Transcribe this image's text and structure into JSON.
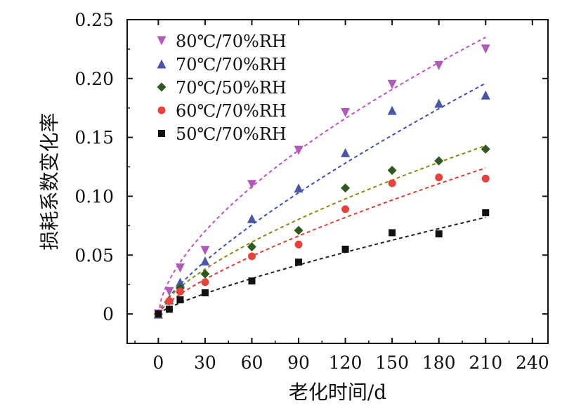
{
  "chart_data": {
    "type": "scatter",
    "xlabel": "老化时间/d",
    "ylabel": "损耗系数变化率",
    "xlim": [
      -20,
      250
    ],
    "ylim": [
      -0.025,
      0.25
    ],
    "x_ticks": [
      0,
      30,
      60,
      90,
      120,
      150,
      180,
      210,
      240
    ],
    "x_tick_labels": [
      "0",
      "30",
      "60",
      "90",
      "120",
      "150",
      "180",
      "210",
      "240"
    ],
    "y_ticks": [
      0,
      0.05,
      0.1,
      0.15,
      0.2,
      0.25
    ],
    "y_tick_labels": [
      "0",
      "0.05",
      "0.10",
      "0.15",
      "0.20",
      "0.25"
    ],
    "legend_position": "top-left",
    "grid": false,
    "fit_lines": "dashed",
    "series": [
      {
        "name": "80℃/70%RH",
        "marker": "triangle-down",
        "color": "#b05bb8",
        "fit_color": "#c24fcf",
        "x": [
          0,
          7,
          14,
          30,
          60,
          90,
          120,
          150,
          180,
          210
        ],
        "y": [
          0.0,
          0.019,
          0.039,
          0.054,
          0.11,
          0.139,
          0.171,
          0.195,
          0.211,
          0.225
        ],
        "fit": [
          0.235,
          0.62
        ]
      },
      {
        "name": "70℃/70%RH",
        "marker": "triangle-up",
        "color": "#4a56a8",
        "fit_color": "#3d4fc0",
        "x": [
          0,
          7,
          14,
          30,
          60,
          90,
          120,
          150,
          180,
          210
        ],
        "y": [
          0.0,
          0.012,
          0.027,
          0.045,
          0.081,
          0.107,
          0.137,
          0.173,
          0.179,
          0.186
        ],
        "fit": [
          0.196,
          0.76
        ]
      },
      {
        "name": "70℃/50%RH",
        "marker": "diamond",
        "color": "#2e5a1f",
        "fit_color": "#8a8a10",
        "x": [
          0,
          7,
          14,
          30,
          60,
          90,
          120,
          150,
          180,
          210
        ],
        "y": [
          0.0,
          0.011,
          0.022,
          0.034,
          0.057,
          0.071,
          0.107,
          0.122,
          0.13,
          0.14
        ],
        "fit": [
          0.143,
          0.68
        ]
      },
      {
        "name": "60℃/70%RH",
        "marker": "circle",
        "color": "#e8433b",
        "fit_color": "#e33a2e",
        "x": [
          0,
          7,
          14,
          30,
          60,
          90,
          120,
          150,
          180,
          210
        ],
        "y": [
          0.0,
          0.011,
          0.019,
          0.027,
          0.049,
          0.059,
          0.089,
          0.111,
          0.116,
          0.115
        ],
        "fit": [
          0.124,
          0.74
        ]
      },
      {
        "name": "50℃/70%RH",
        "marker": "square",
        "color": "#111111",
        "fit_color": "#222222",
        "x": [
          0,
          7,
          14,
          30,
          60,
          90,
          120,
          150,
          180,
          210
        ],
        "y": [
          0.0,
          0.004,
          0.012,
          0.018,
          0.028,
          0.044,
          0.055,
          0.069,
          0.068,
          0.086
        ],
        "fit": [
          0.082,
          0.8
        ]
      }
    ]
  }
}
